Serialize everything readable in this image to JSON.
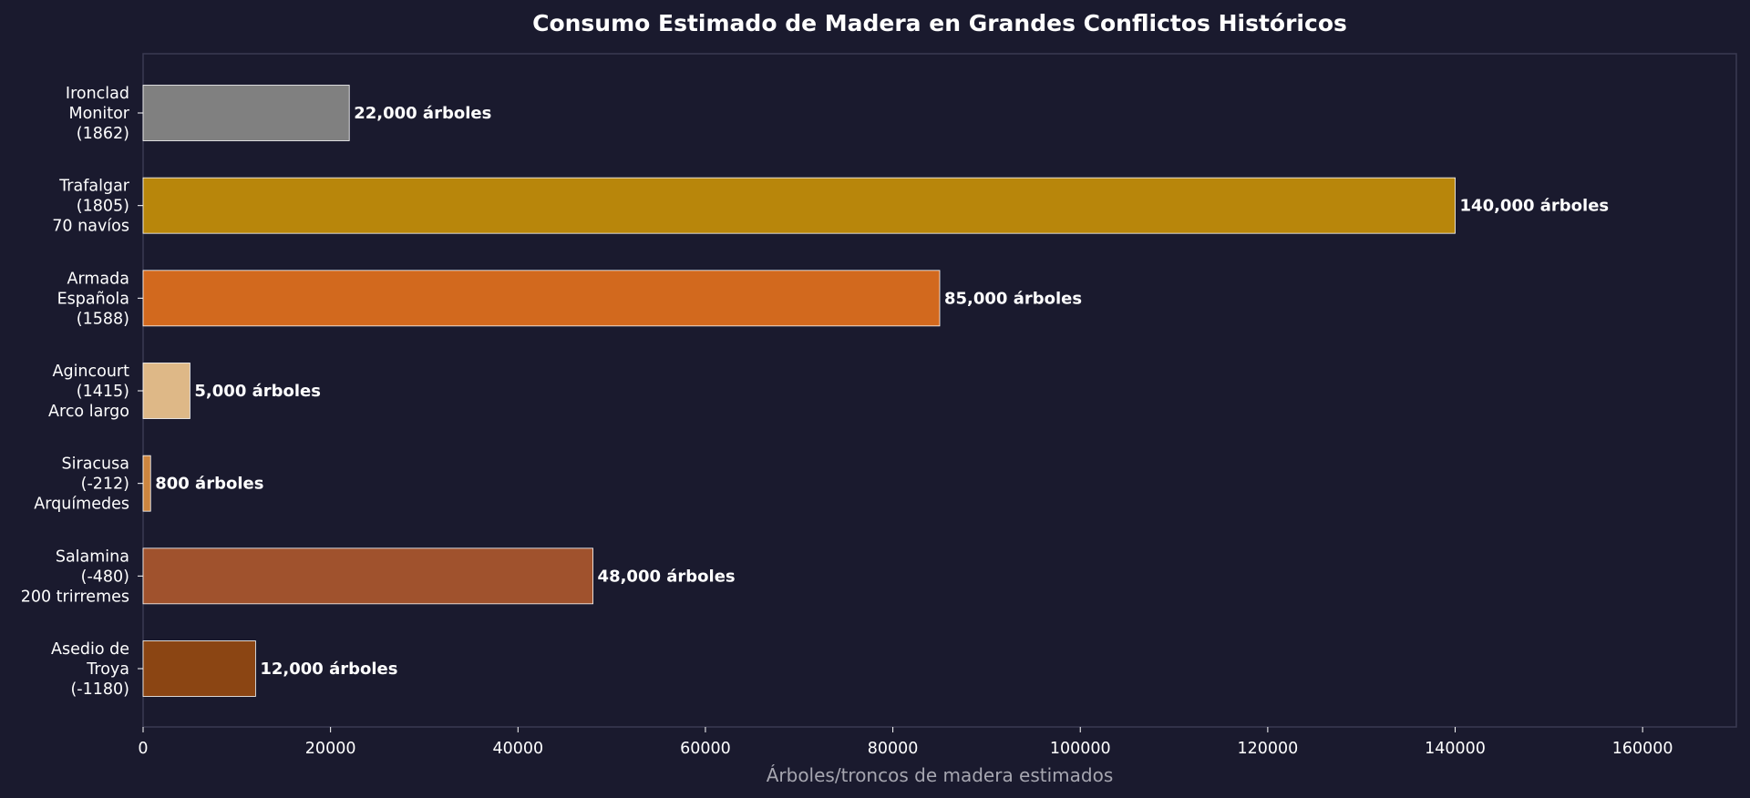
{
  "chart_data": {
    "type": "bar",
    "orientation": "horizontal",
    "title": "Consumo Estimado de Madera en Grandes Conflictos Históricos",
    "xlabel": "Árboles/troncos de madera estimados",
    "ylabel": "",
    "xlim": [
      0,
      170000
    ],
    "xticks": [
      0,
      20000,
      40000,
      60000,
      80000,
      100000,
      120000,
      140000,
      160000
    ],
    "grid": false,
    "legend": "none",
    "bars": [
      {
        "label_lines": [
          "Ironclad",
          "Monitor",
          "(1862)"
        ],
        "value": 22000,
        "value_label": "22,000 árboles",
        "color": "#808080"
      },
      {
        "label_lines": [
          "Trafalgar",
          "(1805)",
          "70 navíos"
        ],
        "value": 140000,
        "value_label": "140,000 árboles",
        "color": "#b8860b"
      },
      {
        "label_lines": [
          "Armada",
          "Española",
          "(1588)"
        ],
        "value": 85000,
        "value_label": "85,000 árboles",
        "color": "#d2691e"
      },
      {
        "label_lines": [
          "Agincourt",
          "(1415)",
          "Arco largo"
        ],
        "value": 5000,
        "value_label": "5,000 árboles",
        "color": "#deb887"
      },
      {
        "label_lines": [
          "Siracusa",
          "(-212)",
          "Arquímedes"
        ],
        "value": 800,
        "value_label": "800 árboles",
        "color": "#cd853f"
      },
      {
        "label_lines": [
          "Salamina",
          "(-480)",
          "200 trirremes"
        ],
        "value": 48000,
        "value_label": "48,000 árboles",
        "color": "#a0522d"
      },
      {
        "label_lines": [
          "Asedio de",
          "Troya",
          "(-1180)"
        ],
        "value": 12000,
        "value_label": "12,000 árboles",
        "color": "#8b4513"
      }
    ],
    "colors": {
      "background": "#1a1a2e",
      "axes_frame": "#3a3a52",
      "text": "#ffffff",
      "xlabel": "#a6a6b0",
      "bar_edge": "#ffffff"
    }
  }
}
